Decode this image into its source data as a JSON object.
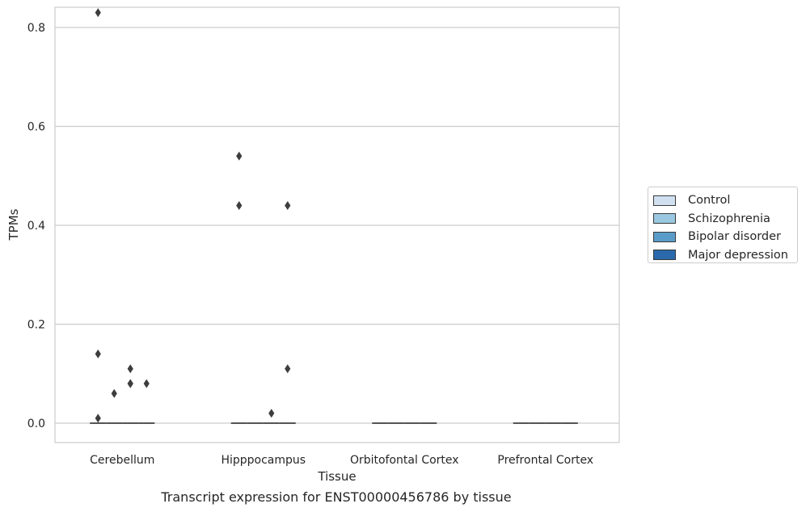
{
  "chart_data": {
    "type": "box",
    "title": "Transcript expression for ENST00000456786 by tissue",
    "xlabel": "Tissue",
    "ylabel": "TPMs",
    "ylim": [
      -0.04,
      0.87
    ],
    "yticks": [
      0.0,
      0.2,
      0.4,
      0.6,
      0.8
    ],
    "ytick_labels": [
      "0.0",
      "0.2",
      "0.4",
      "0.6",
      "0.8"
    ],
    "categories": [
      "Cerebellum",
      "Hipppocampus",
      "Orbitofontal Cortex",
      "Prefrontal Cortex"
    ],
    "grid": "horizontal",
    "legend_position": "right",
    "series": [
      {
        "name": "Control",
        "color": "#d1e0f0",
        "medians": [
          0,
          0,
          0,
          0
        ],
        "outliers": [
          [
            0.83,
            0.14,
            0.01
          ],
          [
            0.54,
            0.44
          ],
          [],
          []
        ]
      },
      {
        "name": "Schizophrenia",
        "color": "#9ac8e0",
        "medians": [
          0,
          0,
          0,
          0
        ],
        "outliers": [
          [
            0.06
          ],
          [],
          [],
          []
        ]
      },
      {
        "name": "Bipolar disorder",
        "color": "#5a9cc9",
        "medians": [
          0,
          0,
          0,
          0
        ],
        "outliers": [
          [
            0.11,
            0.08,
            0.08
          ],
          [
            0.02
          ],
          [],
          []
        ]
      },
      {
        "name": "Major depression",
        "color": "#2a6aab",
        "medians": [
          0,
          0,
          0,
          0
        ],
        "outliers": [
          [
            0.08
          ],
          [
            0.44,
            0.11
          ],
          [],
          []
        ]
      }
    ]
  }
}
